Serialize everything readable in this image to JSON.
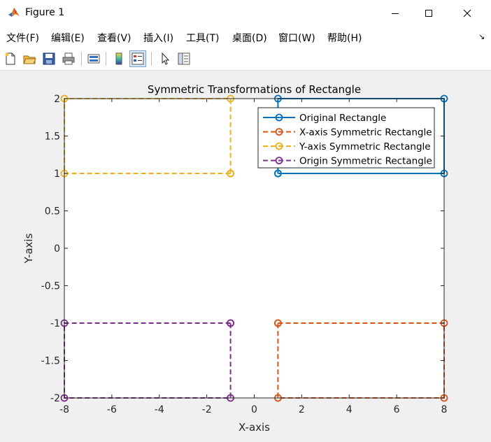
{
  "window": {
    "title": "Figure 1"
  },
  "menu": [
    {
      "label": "文件(F)"
    },
    {
      "label": "编辑(E)"
    },
    {
      "label": "查看(V)"
    },
    {
      "label": "插入(I)"
    },
    {
      "label": "工具(T)"
    },
    {
      "label": "桌面(D)"
    },
    {
      "label": "窗口(W)"
    },
    {
      "label": "帮助(H)"
    }
  ],
  "toolbar_icons": [
    "new-figure-icon",
    "open-file-icon",
    "save-icon",
    "print-icon",
    "link-plot-icon",
    "colorbar-icon",
    "legend-icon",
    "pointer-icon",
    "property-inspector-icon"
  ],
  "colors": {
    "blue": "#0072BD",
    "orange": "#D95319",
    "yellow": "#EDB120",
    "purple": "#7E2F8E"
  },
  "chart_data": {
    "type": "line",
    "title": "Symmetric Transformations of Rectangle",
    "xlabel": "X-axis",
    "ylabel": "Y-axis",
    "xlim": [
      -8,
      8
    ],
    "ylim": [
      -2,
      2
    ],
    "xticks": [
      -8,
      -6,
      -4,
      -2,
      0,
      2,
      4,
      6,
      8
    ],
    "yticks": [
      2,
      1.5,
      1,
      0.5,
      0,
      -0.5,
      -1,
      -1.5,
      -2
    ],
    "grid": false,
    "legend_position": "top-right",
    "series": [
      {
        "name": "Original Rectangle",
        "color": "#0072BD",
        "style": "solid",
        "marker": "circle",
        "x": [
          1,
          8,
          8,
          1,
          1
        ],
        "y": [
          1,
          1,
          2,
          2,
          1
        ]
      },
      {
        "name": "X-axis Symmetric Rectangle",
        "color": "#D95319",
        "style": "dashed",
        "marker": "circle",
        "x": [
          1,
          8,
          8,
          1,
          1
        ],
        "y": [
          -1,
          -1,
          -2,
          -2,
          -1
        ]
      },
      {
        "name": "Y-axis Symmetric Rectangle",
        "color": "#EDB120",
        "style": "dashed",
        "marker": "circle",
        "x": [
          -1,
          -8,
          -8,
          -1,
          -1
        ],
        "y": [
          1,
          1,
          2,
          2,
          1
        ]
      },
      {
        "name": "Origin Symmetric Rectangle",
        "color": "#7E2F8E",
        "style": "dashed",
        "marker": "circle",
        "x": [
          -1,
          -8,
          -8,
          -1,
          -1
        ],
        "y": [
          -1,
          -1,
          -2,
          -2,
          -1
        ]
      }
    ]
  }
}
